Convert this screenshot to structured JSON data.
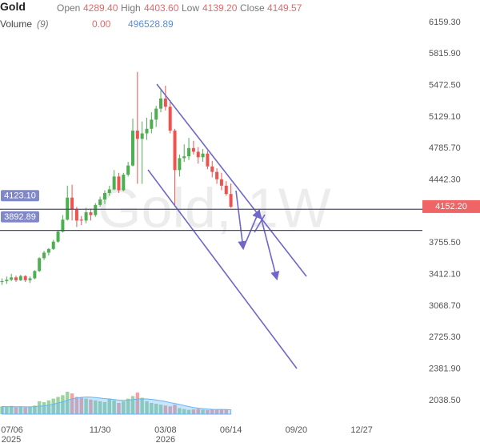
{
  "chart_data": {
    "type": "candlestick",
    "title": "Gold",
    "watermark": "Gold, 1W",
    "ohlc_legend": [
      {
        "name": "Open",
        "value": 4289.4,
        "value_label": "4289.40"
      },
      {
        "name": "High",
        "value": 4403.6,
        "value_label": "4403.60"
      },
      {
        "name": "Low",
        "value": 4139.2,
        "value_label": "4139.20"
      },
      {
        "name": "Close",
        "value": 4149.57,
        "value_label": "4149.57"
      }
    ],
    "volume_legend": {
      "name": "Volume",
      "period": "(9)",
      "values": [
        {
          "value": 0,
          "label": "0.00"
        },
        496528.89
      ]
    },
    "x": [
      "2025-07-06",
      "2025-07-13",
      "2025-07-20",
      "2025-07-27",
      "2025-08-03",
      "2025-08-10",
      "2025-08-17",
      "2025-08-24",
      "2025-08-31",
      "2025-09-07",
      "2025-09-14",
      "2025-09-21",
      "2025-09-28",
      "2025-10-05",
      "2025-10-12",
      "2025-10-19",
      "2025-10-26",
      "2025-11-02",
      "2025-11-09",
      "2025-11-16",
      "2025-11-23",
      "2025-11-30",
      "2025-12-07",
      "2025-12-14",
      "2025-12-21",
      "2025-12-28",
      "2026-01-04",
      "2026-01-11",
      "2026-01-18",
      "2026-01-25",
      "2026-02-01",
      "2026-02-08",
      "2026-02-15",
      "2026-02-22",
      "2026-03-01",
      "2026-03-08",
      "2026-03-15",
      "2026-03-22",
      "2026-03-29",
      "2026-04-05",
      "2026-04-12",
      "2026-04-19",
      "2026-04-26",
      "2026-05-03",
      "2026-05-10",
      "2026-05-17",
      "2026-05-24",
      "2026-05-31",
      "2026-06-07",
      "2026-06-14"
    ],
    "open": [
      3330,
      3340,
      3355,
      3380,
      3350,
      3395,
      3350,
      3370,
      3450,
      3590,
      3650,
      3690,
      3770,
      3880,
      4010,
      4250,
      4120,
      4010,
      4000,
      4090,
      4060,
      4170,
      4230,
      4300,
      4340,
      4480,
      4330,
      4500,
      4600,
      4980,
      4890,
      4950,
      5000,
      5100,
      5220,
      5330,
      5240,
      4980,
      4550,
      4680,
      4700,
      4790,
      4750,
      4690,
      4730,
      4590,
      4530,
      4450,
      4380,
      4289.4
    ],
    "high": [
      3370,
      3390,
      3420,
      3400,
      3410,
      3405,
      3390,
      3460,
      3600,
      3670,
      3700,
      3790,
      3890,
      4060,
      4380,
      4390,
      4150,
      4050,
      4140,
      4130,
      4190,
      4260,
      4330,
      4380,
      4550,
      4520,
      4520,
      4640,
      5110,
      5620,
      5080,
      5120,
      5180,
      5250,
      5420,
      5470,
      5310,
      5000,
      4720,
      4830,
      4900,
      4870,
      4800,
      4780,
      4760,
      4650,
      4570,
      4520,
      4430,
      4403.6
    ],
    "low": [
      3300,
      3310,
      3340,
      3330,
      3340,
      3330,
      3320,
      3360,
      3440,
      3570,
      3620,
      3680,
      3760,
      3870,
      4000,
      4000,
      3930,
      3950,
      3970,
      4000,
      4040,
      4150,
      4180,
      4270,
      4330,
      4300,
      4320,
      4480,
      4590,
      4400,
      4400,
      4880,
      4950,
      5020,
      5180,
      5200,
      4950,
      4150,
      4480,
      4640,
      4660,
      4720,
      4620,
      4640,
      4560,
      4470,
      4400,
      4330,
      4270,
      4139.2
    ],
    "close": [
      3340,
      3355,
      3380,
      3350,
      3395,
      3350,
      3370,
      3450,
      3590,
      3650,
      3690,
      3770,
      3880,
      4010,
      4250,
      4120,
      4000,
      4000,
      4090,
      4060,
      4170,
      4230,
      4300,
      4340,
      4480,
      4330,
      4500,
      4600,
      4980,
      4890,
      4950,
      5000,
      5100,
      5220,
      5330,
      5240,
      4980,
      4550,
      4680,
      4700,
      4790,
      4750,
      4690,
      4730,
      4590,
      4530,
      4450,
      4380,
      4289.4,
      4149.57
    ],
    "volume": [
      900000,
      850000,
      950000,
      800000,
      900000,
      780000,
      820000,
      1000000,
      1500000,
      1400000,
      1600000,
      1800000,
      2000000,
      2200000,
      2600000,
      2400000,
      2000000,
      1900000,
      1800000,
      1700000,
      1600000,
      1500000,
      1400000,
      1800000,
      1600000,
      1300000,
      1500000,
      1800000,
      2100000,
      2500000,
      1900000,
      1500000,
      1300000,
      1200000,
      1100000,
      1000000,
      900000,
      1100000,
      700000,
      600000,
      500000,
      550000,
      600000,
      520000,
      480000,
      560000,
      500000,
      540000,
      520000,
      0
    ],
    "volume_ma": [
      880000,
      870000,
      870000,
      860000,
      860000,
      850000,
      850000,
      870000,
      920000,
      980000,
      1060000,
      1160000,
      1290000,
      1440000,
      1620000,
      1780000,
      1880000,
      1950000,
      1980000,
      1970000,
      1930000,
      1870000,
      1800000,
      1760000,
      1700000,
      1640000,
      1600000,
      1620000,
      1680000,
      1760000,
      1780000,
      1760000,
      1720000,
      1650000,
      1560000,
      1460000,
      1340000,
      1240000,
      1130000,
      1000000,
      880000,
      770000,
      700000,
      640000,
      590000,
      560000,
      550000,
      540000,
      530000,
      496528.89
    ],
    "up_color": "#4caf50",
    "down_color": "#ef5350",
    "volume_ma_color": "#64b5f6",
    "xlim": [
      "2025-07-03",
      "2027-03-28"
    ],
    "xticks": [
      {
        "value": "2025-07-06",
        "label": "07/06"
      },
      {
        "value": "2025-11-30",
        "label": "11/30"
      },
      {
        "value": "2026-03-08",
        "label": "03/08"
      },
      {
        "value": "2026-06-14",
        "label": "06/14"
      },
      {
        "value": "2026-09-20",
        "label": "09/20"
      },
      {
        "value": "2026-12-27",
        "label": "12/27"
      }
    ],
    "xtick_years": [
      {
        "value": "2025-07-06",
        "label": "2025"
      },
      {
        "value": "2026-03-08",
        "label": "2026"
      }
    ],
    "ylim": [
      2038.5,
      6159.3
    ],
    "yticks": [
      {
        "value": 6159.3,
        "label": "6159.30"
      },
      {
        "value": 5815.9,
        "label": "5815.90"
      },
      {
        "value": 5472.5,
        "label": "5472.50"
      },
      {
        "value": 5129.1,
        "label": "5129.10"
      },
      {
        "value": 4785.7,
        "label": "4785.70"
      },
      {
        "value": 4442.3,
        "label": "4442.30"
      },
      {
        "value": 3755.5,
        "label": "3755.50"
      },
      {
        "value": 3412.1,
        "label": "3412.10"
      },
      {
        "value": 3068.7,
        "label": "3068.70"
      },
      {
        "value": 2725.3,
        "label": "2725.30"
      },
      {
        "value": 2381.9,
        "label": "2381.90"
      },
      {
        "value": 2038.5,
        "label": "2038.50"
      }
    ],
    "price_lines": [
      {
        "value": 4123.1,
        "label": "4123.10"
      },
      {
        "value": 3892.89,
        "label": "3892.89"
      }
    ],
    "price_line_color": "#4a4f6e",
    "price_label_color": "#8088c8",
    "last_price": {
      "value": 4152.2,
      "label": "4152.20"
    },
    "last_price_color": "#ef6464"
  }
}
